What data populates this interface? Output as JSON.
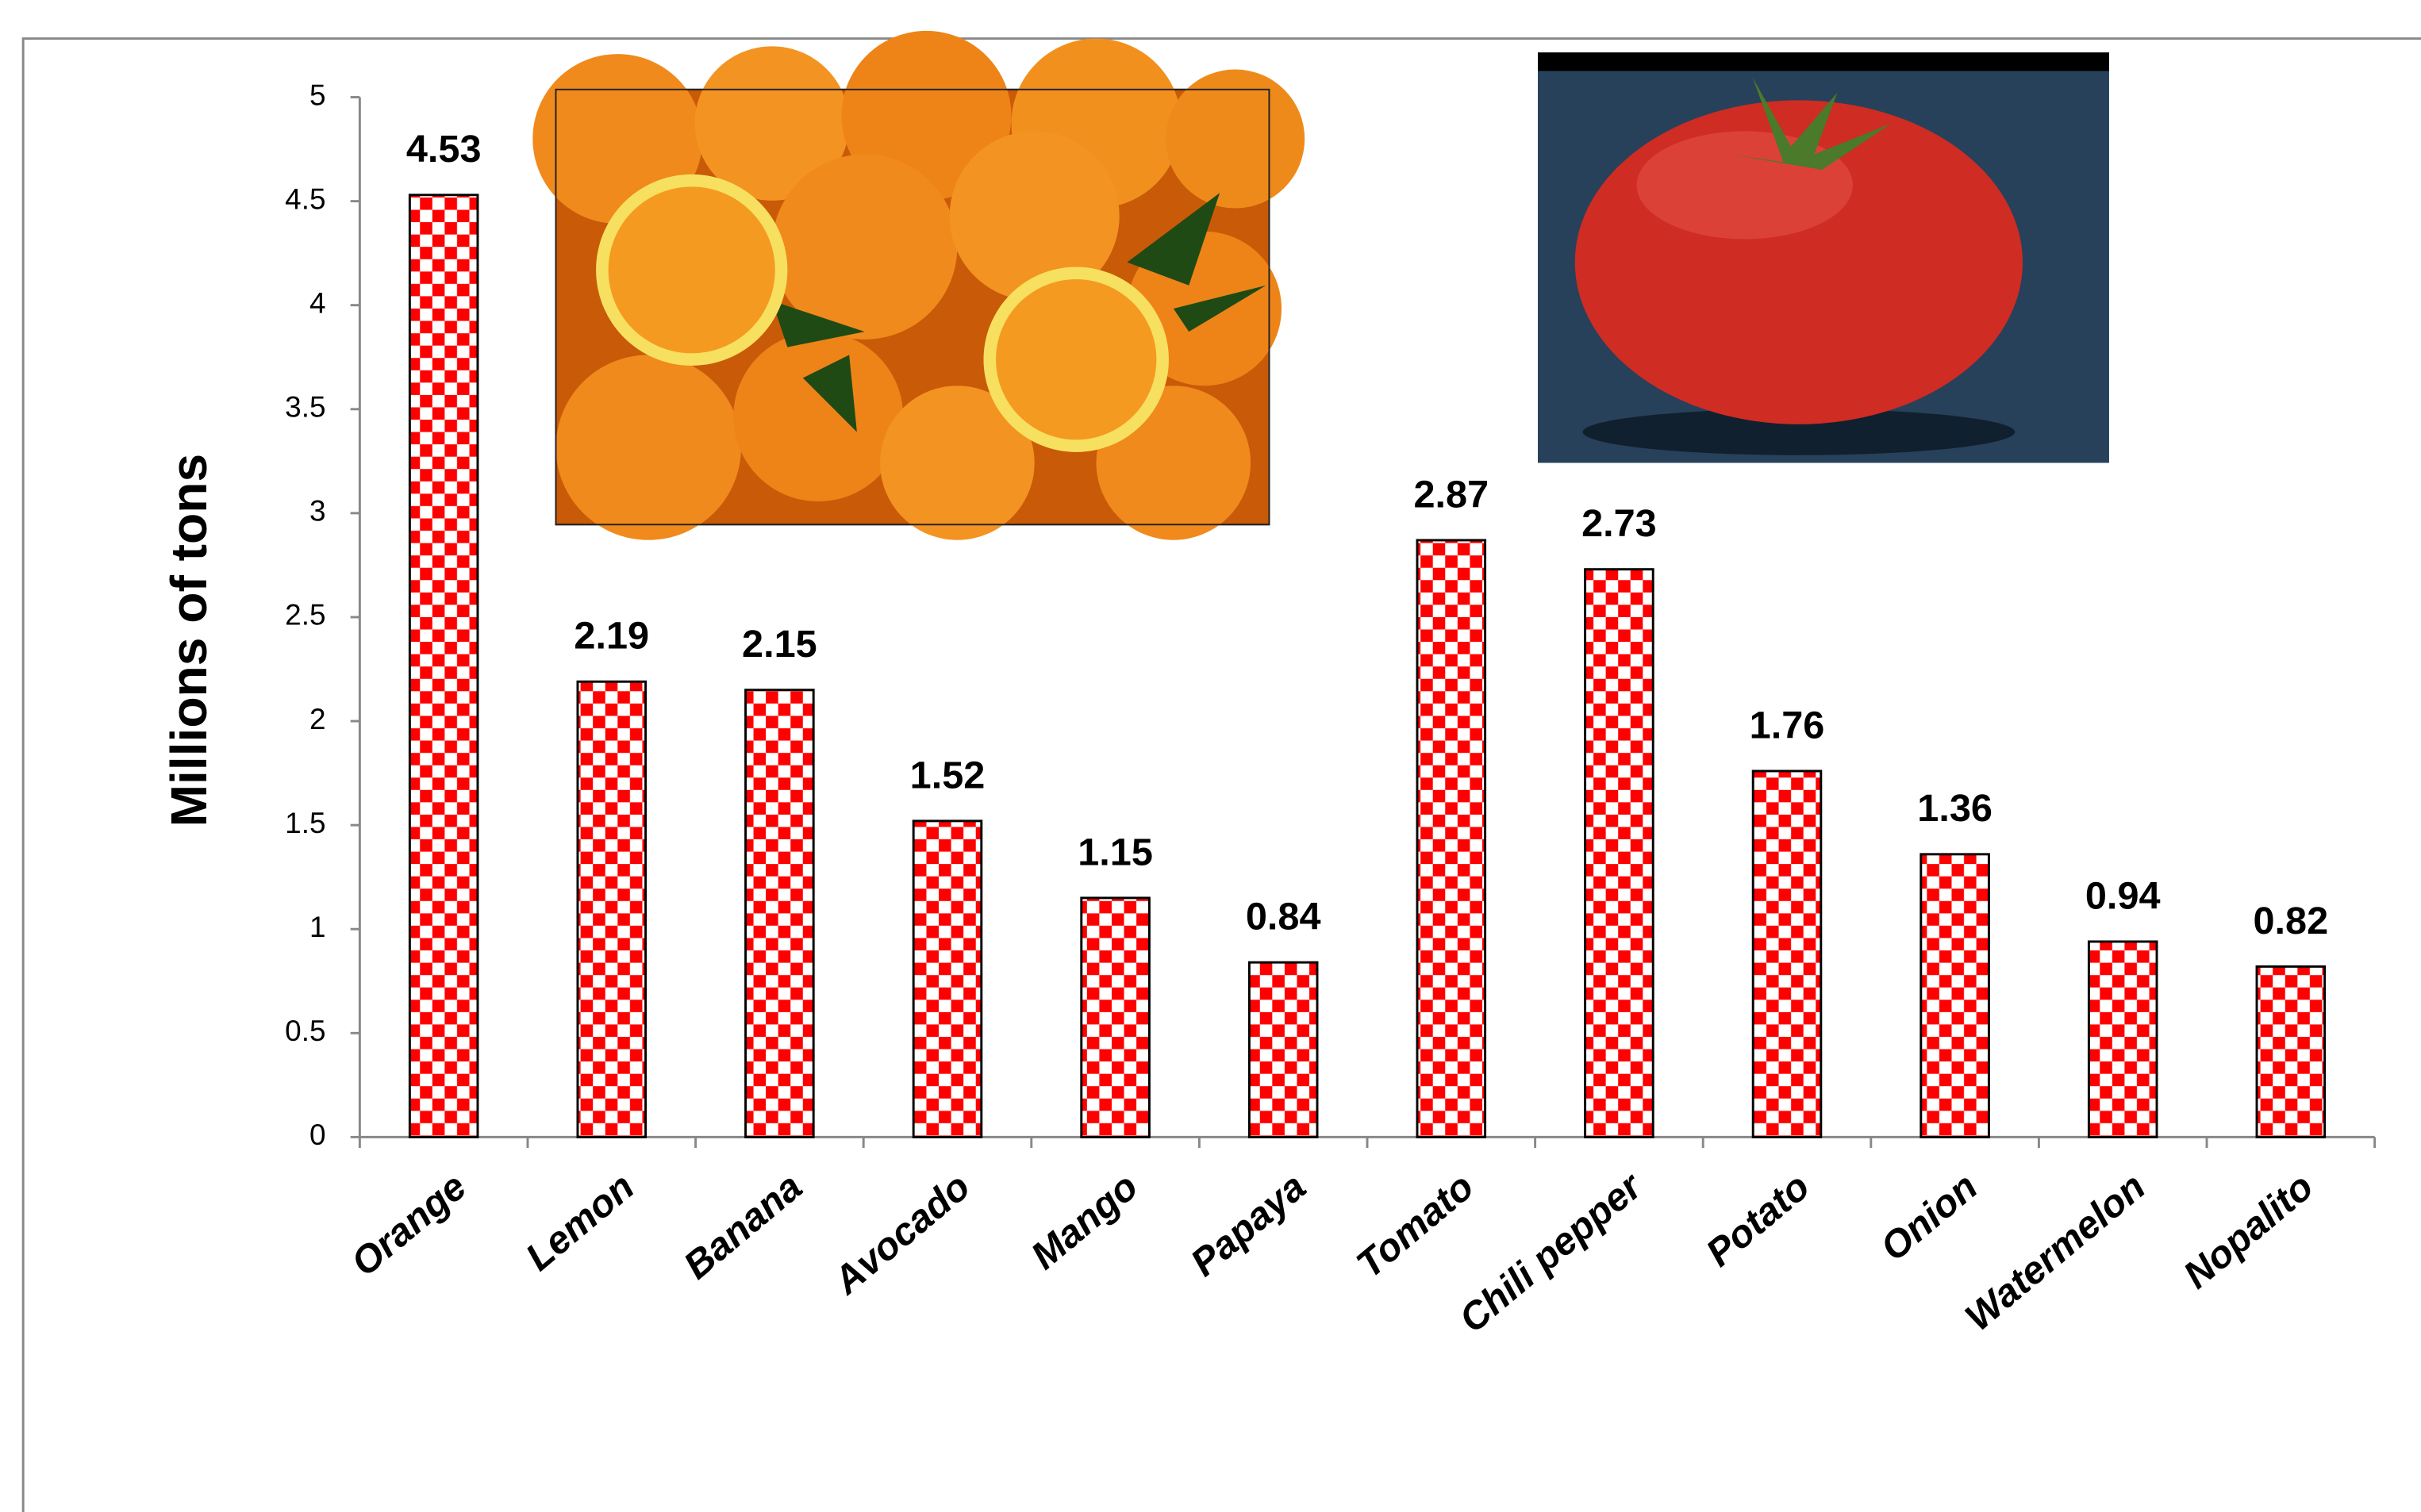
{
  "chart_data": {
    "type": "bar",
    "y_label": "Millions of tons",
    "categories": [
      "Orange",
      "Lemon",
      "Banana",
      "Avocado",
      "Mango",
      "Papaya",
      "Tomato",
      "Chili pepper",
      "Potato",
      "Onion",
      "Watermelon",
      "Nopalito"
    ],
    "values": [
      4.53,
      2.19,
      2.15,
      1.52,
      1.15,
      0.84,
      2.87,
      2.73,
      1.76,
      1.36,
      0.94,
      0.82
    ],
    "color": "#ff0000",
    "ylim": [
      0,
      5
    ],
    "yticks": [
      0,
      0.5,
      1,
      1.5,
      2,
      2.5,
      3,
      3.5,
      4,
      4.5,
      5
    ],
    "grid": false
  }
}
